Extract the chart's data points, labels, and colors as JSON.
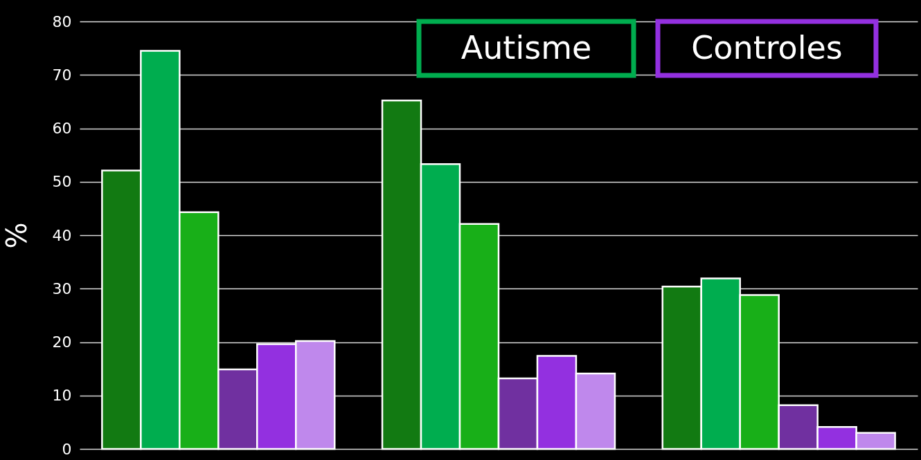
{
  "chart_data": {
    "type": "bar",
    "ylabel": "%",
    "categories": [
      null,
      null,
      null
    ],
    "series": [
      {
        "color": "#127a12",
        "values": [
          52.1,
          65.2,
          30.4
        ]
      },
      {
        "color": "#00ad4f",
        "values": [
          74.5,
          53.3,
          31.9
        ]
      },
      {
        "color": "#18af18",
        "values": [
          44.3,
          42.1,
          28.8
        ]
      },
      {
        "color": "#7030a0",
        "values": [
          14.9,
          13.2,
          8.2
        ]
      },
      {
        "color": "#9330e0",
        "values": [
          19.6,
          17.4,
          4.1
        ]
      },
      {
        "color": "#bf88ec",
        "values": [
          20.2,
          14.1,
          3.0
        ]
      }
    ],
    "ylim": [
      0,
      80
    ],
    "yticks": [
      0,
      10,
      20,
      30,
      40,
      50,
      60,
      70,
      80
    ],
    "grid": "y",
    "annotations": [
      "Autisme",
      "Controles"
    ]
  }
}
